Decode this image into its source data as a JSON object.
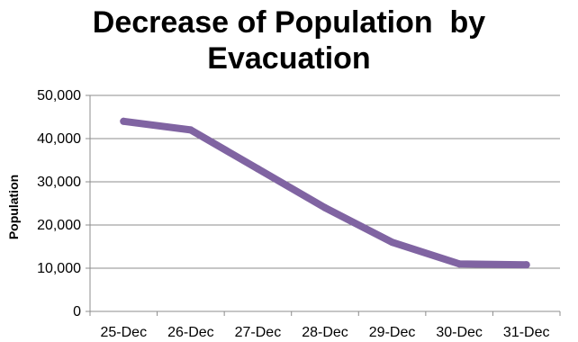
{
  "chart_data": {
    "type": "line",
    "title_lines": [
      "Decrease of Population  by",
      "Evacuation"
    ],
    "xlabel": "",
    "ylabel": "Population",
    "categories": [
      "25-Dec",
      "26-Dec",
      "27-Dec",
      "28-Dec",
      "29-Dec",
      "30-Dec",
      "31-Dec"
    ],
    "series": [
      {
        "values": [
          44000,
          42000,
          33000,
          24000,
          16000,
          11000,
          10800
        ],
        "color": "#8064A2"
      }
    ],
    "ylim": [
      0,
      50000
    ],
    "yticks": [
      0,
      10000,
      20000,
      30000,
      40000,
      50000
    ],
    "ytick_labels": [
      "0",
      "10,000",
      "20,000",
      "30,000",
      "40,000",
      "50,000"
    ],
    "grid": true,
    "legend": "none"
  }
}
